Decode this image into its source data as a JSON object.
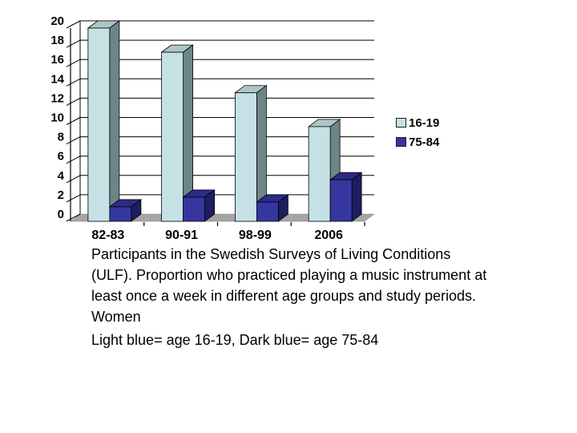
{
  "chart_data": {
    "type": "bar",
    "variant": "3d-clustered-columns",
    "title": "",
    "xlabel": "",
    "ylabel": "",
    "categories": [
      "82-83",
      "90-91",
      "98-99",
      "2006"
    ],
    "series": [
      {
        "name": "16-19",
        "values": [
          20,
          17.5,
          13.3,
          9.8
        ],
        "color": "#C5E1E6",
        "top_color": "#AFC6C9",
        "side_color": "#6E8588"
      },
      {
        "name": "75-84",
        "values": [
          1.5,
          2.5,
          2,
          4.3
        ],
        "color": "#3636A0",
        "top_color": "#2B2B88",
        "side_color": "#1E1E5F"
      }
    ],
    "ylim": [
      0,
      20
    ],
    "ytick_step": 2,
    "grid": true,
    "legend_position": "right"
  },
  "colors": {
    "background": "#FFFFFF",
    "gridline": "#000000",
    "floor": "#A5A5A5",
    "floor_edge": "#7A7A7A",
    "text": "#000000"
  },
  "caption": {
    "paragraph": "Participants in the Swedish Surveys of Living Conditions (ULF). Proportion who practiced playing a music instrument at least once a week in different age groups and study periods.  Women",
    "note": "Light blue= age 16-19, Dark blue= age 75-84"
  }
}
